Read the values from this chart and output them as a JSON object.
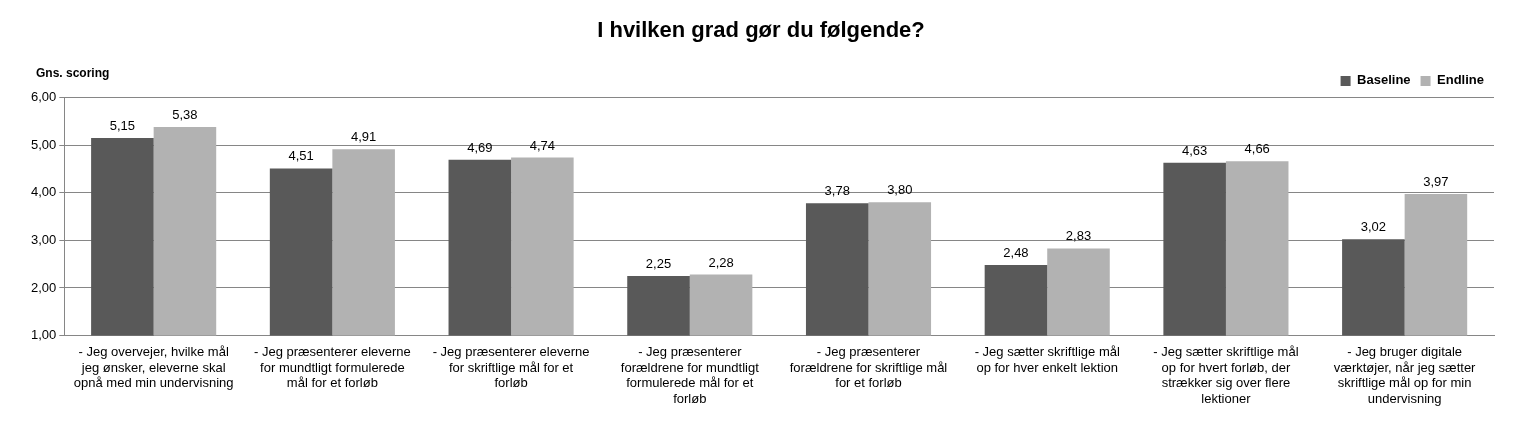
{
  "chart_data": {
    "type": "bar",
    "title": "I hvilken grad gør du følgende?",
    "ylabel": "Gns. scoring",
    "categories": [
      "- Jeg overvejer, hvilke mål jeg ønsker, eleverne skal opnå med min undervisning",
      "- Jeg præsenterer eleverne for mundtligt formulerede mål for et forløb",
      "- Jeg præsenterer eleverne for skriftlige mål for et forløb",
      "- Jeg præsenterer forældrene for mundtligt formulerede mål for et forløb",
      "- Jeg præsenterer forældrene for skriftlige mål for et forløb",
      "- Jeg sætter skriftlige mål op for hver enkelt lektion",
      "- Jeg sætter skriftlige mål op for hvert forløb, der strækker sig over flere lektioner",
      "- Jeg bruger digitale værktøjer, når jeg sætter skriftlige mål op for min undervisning"
    ],
    "series": [
      {
        "name": "Baseline",
        "color": "#595959",
        "values": [
          5.15,
          4.51,
          4.69,
          2.25,
          3.78,
          2.48,
          4.63,
          3.02
        ],
        "value_labels": [
          "5,15",
          "4,51",
          "4,69",
          "2,25",
          "3,78",
          "2,48",
          "4,63",
          "3,02"
        ]
      },
      {
        "name": "Endline",
        "color": "#b2b2b2",
        "values": [
          5.38,
          4.91,
          4.74,
          2.28,
          3.8,
          2.83,
          4.66,
          3.97
        ],
        "value_labels": [
          "5,38",
          "4,91",
          "4,74",
          "2,28",
          "3,80",
          "2,83",
          "4,66",
          "3,97"
        ]
      }
    ],
    "ylim": [
      1,
      6
    ],
    "yticks": [
      {
        "value": 1,
        "label": "1,00"
      },
      {
        "value": 2,
        "label": "2,00"
      },
      {
        "value": 3,
        "label": "3,00"
      },
      {
        "value": 4,
        "label": "4,00"
      },
      {
        "value": 5,
        "label": "5,00"
      },
      {
        "value": 6,
        "label": "6,00"
      }
    ],
    "grid": "y",
    "legend": "top right"
  }
}
